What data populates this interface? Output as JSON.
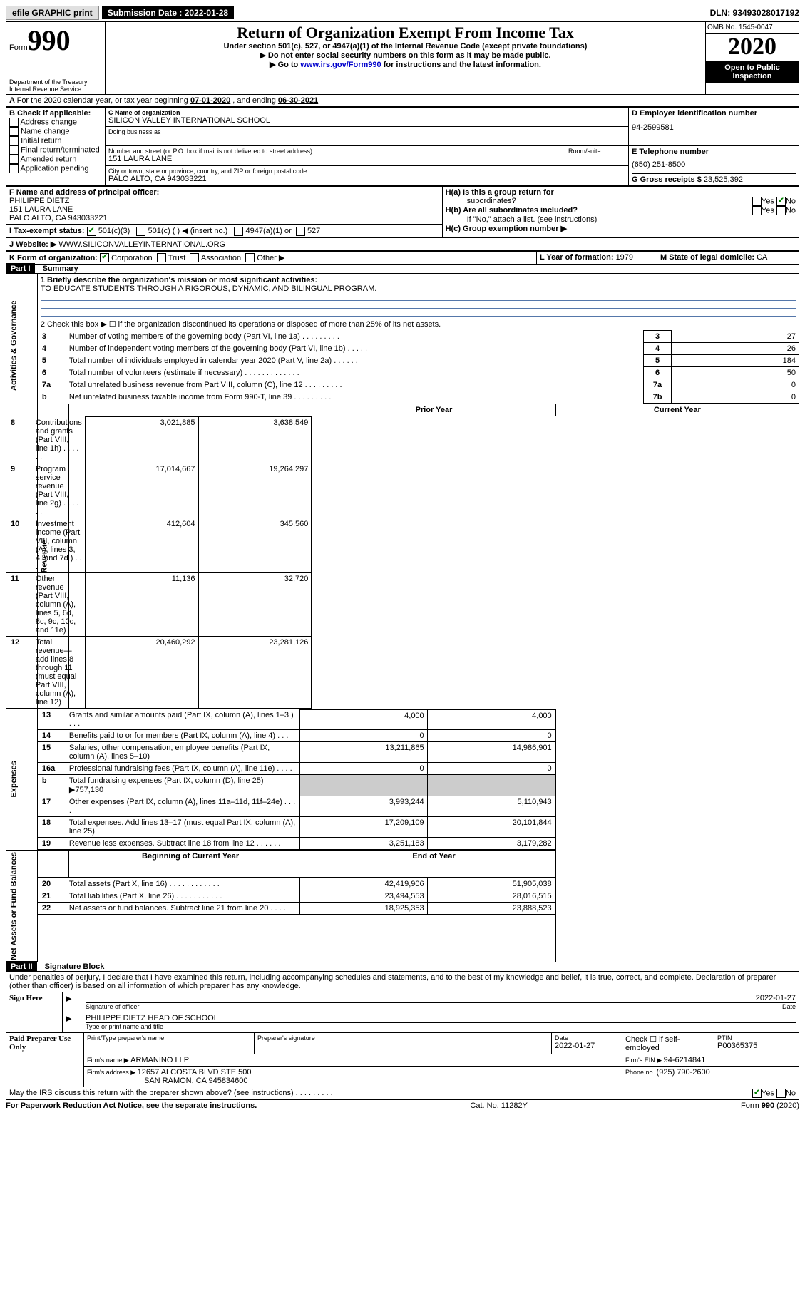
{
  "topbar": {
    "efile": "efile GRAPHIC print",
    "subdate_label": "Submission Date : 2022-01-28",
    "dln": "DLN: 93493028017192"
  },
  "header": {
    "form_label": "Form",
    "form_num": "990",
    "title": "Return of Organization Exempt From Income Tax",
    "subtitle": "Under section 501(c), 527, or 4947(a)(1) of the Internal Revenue Code (except private foundations)",
    "note1": "Do not enter social security numbers on this form as it may be made public.",
    "note2_pre": "Go to ",
    "note2_link": "www.irs.gov/Form990",
    "note2_post": " for instructions and the latest information.",
    "dept": "Department of the Treasury\nInternal Revenue Service",
    "omb": "OMB No. 1545-0047",
    "year": "2020",
    "open": "Open to Public Inspection"
  },
  "period": {
    "text_a": "For the 2020 calendar year, or tax year beginning ",
    "begin": "07-01-2020",
    "text_b": " , and ending ",
    "end": "06-30-2021"
  },
  "boxB": {
    "label": "B Check if applicable:",
    "items": [
      "Address change",
      "Name change",
      "Initial return",
      "Final return/terminated",
      "Amended return",
      "Application pending"
    ]
  },
  "boxC": {
    "label": "C Name of organization",
    "name": "SILICON VALLEY INTERNATIONAL SCHOOL",
    "dba_label": "Doing business as",
    "addr_label": "Number and street (or P.O. box if mail is not delivered to street address)",
    "room_label": "Room/suite",
    "street": "151 LAURA LANE",
    "city_label": "City or town, state or province, country, and ZIP or foreign postal code",
    "city": "PALO ALTO, CA  943033221"
  },
  "boxD": {
    "label": "D Employer identification number",
    "val": "94-2599581"
  },
  "boxE": {
    "label": "E Telephone number",
    "val": "(650) 251-8500"
  },
  "boxG": {
    "label": "G Gross receipts $ ",
    "val": "23,525,392"
  },
  "boxF": {
    "label": "F Name and address of principal officer:",
    "name": "PHILIPPE DIETZ",
    "addr1": "151 LAURA LANE",
    "addr2": "PALO ALTO, CA  943033221"
  },
  "boxH": {
    "a_label": "H(a)  Is this a group return for",
    "a_sub": "subordinates?",
    "b_label": "H(b)  Are all subordinates included?",
    "b_note": "If \"No,\" attach a list. (see instructions)",
    "c_label": "H(c)  Group exemption number ▶",
    "yes": "Yes",
    "no": "No"
  },
  "boxI": {
    "label": "I  Tax-exempt status:",
    "opts": [
      "501(c)(3)",
      "501(c) (   ) ◀ (insert no.)",
      "4947(a)(1) or",
      "527"
    ]
  },
  "boxJ": {
    "label": "J  Website: ▶",
    "val": " WWW.SILICONVALLEYINTERNATIONAL.ORG"
  },
  "boxK": {
    "label": "K Form of organization:",
    "opts": [
      "Corporation",
      "Trust",
      "Association",
      "Other ▶"
    ]
  },
  "boxL": {
    "label": "L Year of formation: ",
    "val": "1979"
  },
  "boxM": {
    "label": "M State of legal domicile: ",
    "val": "CA"
  },
  "part1": {
    "title": "Part I",
    "heading": "Summary",
    "l1_label": "1  Briefly describe the organization's mission or most significant activities:",
    "l1_val": "TO EDUCATE STUDENTS THROUGH A RIGOROUS, DYNAMIC, AND BILINGUAL PROGRAM.",
    "l2": "2   Check this box ▶ ☐  if the organization discontinued its operations or disposed of more than 25% of its net assets.",
    "rows_top": [
      {
        "n": "3",
        "t": "Number of voting members of the governing body (Part VI, line 1a)   .     .     .     .     .     .     .     .     .",
        "k": "3",
        "v": "27"
      },
      {
        "n": "4",
        "t": "Number of independent voting members of the governing body (Part VI, line 1b)  .     .     .     .     .",
        "k": "4",
        "v": "26"
      },
      {
        "n": "5",
        "t": "Total number of individuals employed in calendar year 2020 (Part V, line 2a)   .     .     .     .     .     .",
        "k": "5",
        "v": "184"
      },
      {
        "n": "6",
        "t": "Total number of volunteers (estimate if necessary)   .     .     .     .     .     .     .     .     .     .     .     .     .",
        "k": "6",
        "v": "50"
      },
      {
        "n": "7a",
        "t": "Total unrelated business revenue from Part VIII, column (C), line 12  .     .     .     .     .     .     .     .     .",
        "k": "7a",
        "v": "0"
      },
      {
        "n": "b",
        "t": "Net unrelated business taxable income from Form 990-T, line 39   .     .     .     .     .     .     .     .     .",
        "k": "7b",
        "v": "0"
      }
    ],
    "col_prior": "Prior Year",
    "col_curr": "Current Year",
    "revenue": [
      {
        "n": "8",
        "t": "Contributions and grants (Part VIII, line 1h)   .     .     .     .     .     .",
        "p": "3,021,885",
        "c": "3,638,549"
      },
      {
        "n": "9",
        "t": "Program service revenue (Part VIII, line 2g)   .     .     .     .     .     .",
        "p": "17,014,667",
        "c": "19,264,297"
      },
      {
        "n": "10",
        "t": "Investment income (Part VIII, column (A), lines 3, 4, and 7d )   .     .     .",
        "p": "412,604",
        "c": "345,560"
      },
      {
        "n": "11",
        "t": "Other revenue (Part VIII, column (A), lines 5, 6d, 8c, 9c, 10c, and 11e)",
        "p": "11,136",
        "c": "32,720"
      },
      {
        "n": "12",
        "t": "Total revenue—add lines 8 through 11 (must equal Part VIII, column (A), line 12)",
        "p": "20,460,292",
        "c": "23,281,126"
      }
    ],
    "expenses": [
      {
        "n": "13",
        "t": "Grants and similar amounts paid (Part IX, column (A), lines 1–3 )  .     .     .",
        "p": "4,000",
        "c": "4,000"
      },
      {
        "n": "14",
        "t": "Benefits paid to or for members (Part IX, column (A), line 4)   .     .     .",
        "p": "0",
        "c": "0"
      },
      {
        "n": "15",
        "t": "Salaries, other compensation, employee benefits (Part IX, column (A), lines 5–10)",
        "p": "13,211,865",
        "c": "14,986,901"
      },
      {
        "n": "16a",
        "t": "Professional fundraising fees (Part IX, column (A), line 11e)   .     .     .     .",
        "p": "0",
        "c": "0"
      },
      {
        "n": "b",
        "t": "Total fundraising expenses (Part IX, column (D), line 25) ▶757,130",
        "p": "",
        "c": ""
      },
      {
        "n": "17",
        "t": "Other expenses (Part IX, column (A), lines 11a–11d, 11f–24e)  .     .     .     .",
        "p": "3,993,244",
        "c": "5,110,943"
      },
      {
        "n": "18",
        "t": "Total expenses. Add lines 13–17 (must equal Part IX, column (A), line 25)",
        "p": "17,209,109",
        "c": "20,101,844"
      },
      {
        "n": "19",
        "t": "Revenue less expenses. Subtract line 18 from line 12  .     .     .     .     .     .",
        "p": "3,251,183",
        "c": "3,179,282"
      }
    ],
    "col_begin": "Beginning of Current Year",
    "col_end": "End of Year",
    "netassets": [
      {
        "n": "20",
        "t": "Total assets (Part X, line 16)   .     .     .     .     .     .     .     .     .     .     .     .",
        "p": "42,419,906",
        "c": "51,905,038"
      },
      {
        "n": "21",
        "t": "Total liabilities (Part X, line 26)   .     .     .     .     .     .     .     .     .     .     .",
        "p": "23,494,553",
        "c": "28,016,515"
      },
      {
        "n": "22",
        "t": "Net assets or fund balances. Subtract line 21 from line 20  .     .     .     .",
        "p": "18,925,353",
        "c": "23,888,523"
      }
    ],
    "vlab_gov": "Activities & Governance",
    "vlab_rev": "Revenue",
    "vlab_exp": "Expenses",
    "vlab_net": "Net Assets or Fund Balances"
  },
  "part2": {
    "title": "Part II",
    "heading": "Signature Block",
    "decl": "Under penalties of perjury, I declare that I have examined this return, including accompanying schedules and statements, and to the best of my knowledge and belief, it is true, correct, and complete. Declaration of preparer (other than officer) is based on all information of which preparer has any knowledge.",
    "sign_here": "Sign Here",
    "sig_officer": "Signature of officer",
    "sig_date": "2022-01-27",
    "date_label": "Date",
    "officer_name": "PHILIPPE DIETZ  HEAD OF SCHOOL",
    "type_label": "Type or print name and title",
    "paid": "Paid Preparer Use Only",
    "prep_name_label": "Print/Type preparer's name",
    "prep_sig_label": "Preparer's signature",
    "prep_date_label": "Date",
    "prep_date": "2022-01-27",
    "check_self": "Check ☐ if self-employed",
    "ptin_label": "PTIN",
    "ptin": "P00365375",
    "firm_name_label": "Firm's name   ▶ ",
    "firm_name": "ARMANINO LLP",
    "firm_ein_label": "Firm's EIN ▶ ",
    "firm_ein": "94-6214841",
    "firm_addr_label": "Firm's address ▶ ",
    "firm_addr1": "12657 ALCOSTA BLVD STE 500",
    "firm_addr2": "SAN RAMON, CA  945834600",
    "phone_label": "Phone no. ",
    "phone": "(925) 790-2600",
    "discuss": "May the IRS discuss this return with the preparer shown above? (see instructions)   .     .     .     .     .     .     .     .     .",
    "yes": "Yes",
    "no": "No"
  },
  "footer": {
    "pra": "For Paperwork Reduction Act Notice, see the separate instructions.",
    "cat": "Cat. No. 11282Y",
    "form": "Form 990 (2020)"
  }
}
